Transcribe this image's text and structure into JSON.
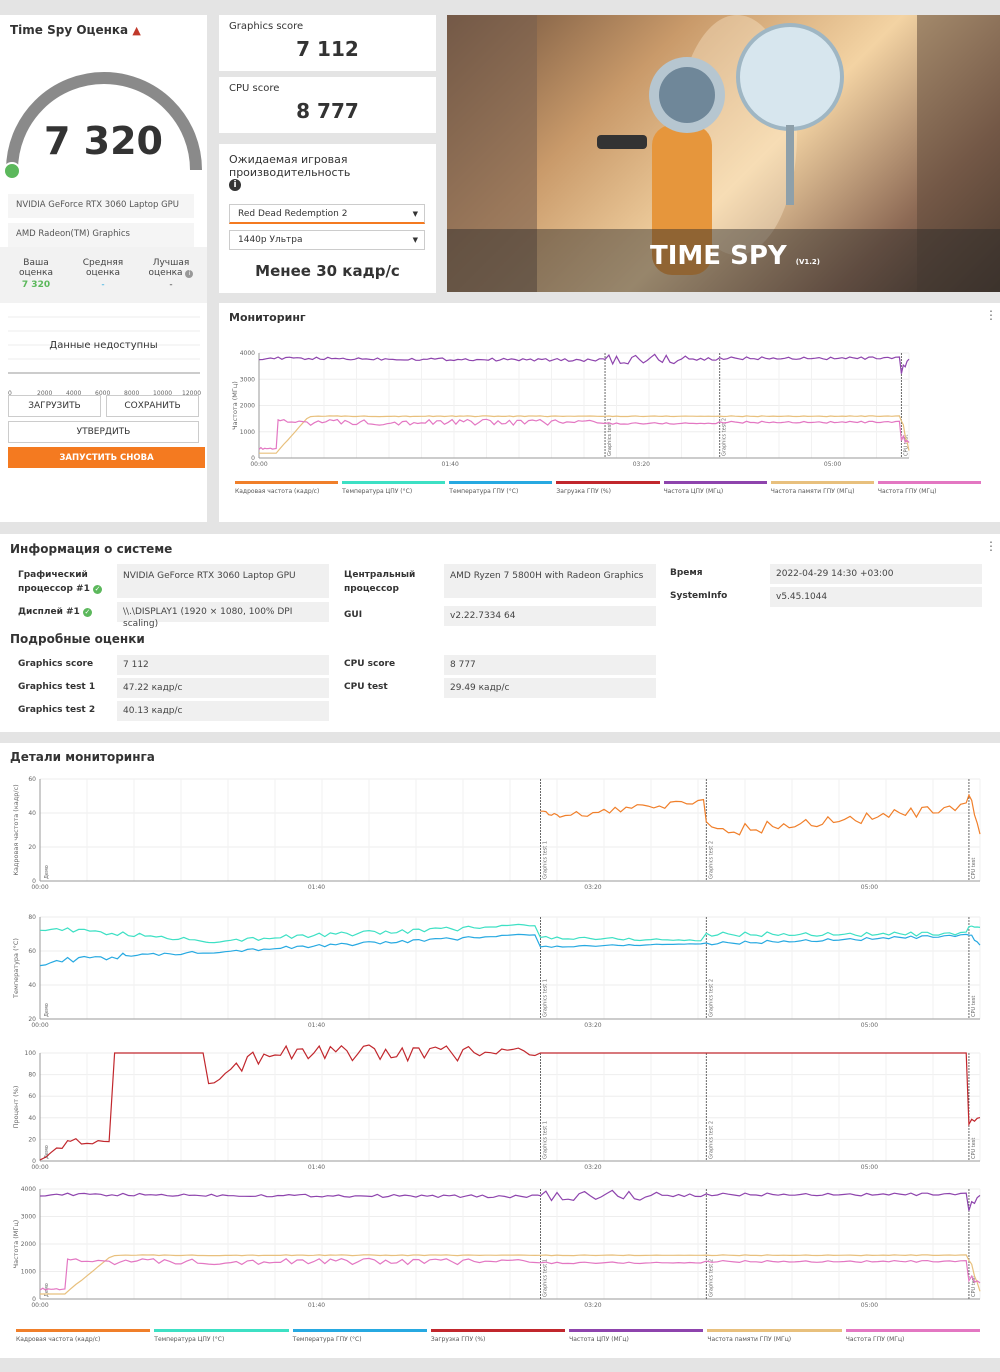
{
  "score_card": {
    "title": "Time Spy Оценка",
    "score": "7 320",
    "gpu": "NVIDIA GeForce RTX 3060 Laptop GPU",
    "igpu": "AMD Radeon(TM) Graphics",
    "your_label": "Ваша оценка",
    "your_value": "7 320",
    "avg_label": "Средняя оценка",
    "avg_value": "-",
    "best_label": "Лучшая оценка",
    "best_value": "-",
    "no_data": "Данные недоступны",
    "axis_ticks": [
      "0",
      "2000",
      "4000",
      "6000",
      "8000",
      "10000",
      "12000"
    ],
    "load_btn": "ЗАГРУЗИТЬ",
    "save_btn": "СОХРАНИТЬ",
    "confirm_btn": "УТВЕРДИТЬ",
    "run_btn": "ЗАПУСТИТЬ СНОВА",
    "gauge_fraction": 0.0,
    "accent": "#f47a20",
    "gauge_dot": "#5cb85c"
  },
  "graphics_score": {
    "label": "Graphics score",
    "value": "7 112"
  },
  "cpu_score": {
    "label": "CPU score",
    "value": "8 777"
  },
  "expected": {
    "title": "Ожидаемая игровая производительность",
    "game": "Red Dead Redemption 2",
    "preset": "1440p Ультра",
    "result": "Менее 30 кадр/с"
  },
  "hero": {
    "title": "TIME SPY",
    "version": "(V1.2)"
  },
  "monitoring": {
    "title": "Мониторинг",
    "ylabel": "Частота (МГц)",
    "yticks": [
      "4000",
      "3000",
      "2000",
      "1000",
      "0"
    ],
    "xticks": [
      "00:00",
      "01:40",
      "03:20",
      "05:00"
    ],
    "markers": [
      "Graphics test 1",
      "Graphics test 2",
      "CPU test"
    ]
  },
  "legend": [
    {
      "label": "Кадровая частота (кадр/с)",
      "color": "#f07f2a"
    },
    {
      "label": "Температура ЦПУ (°C)",
      "color": "#3de0c4"
    },
    {
      "label": "Температура ГПУ (°C)",
      "color": "#27a9e1"
    },
    {
      "label": "Загрузка ГПУ (%)",
      "color": "#c1272d"
    },
    {
      "label": "Частота ЦПУ (МГц)",
      "color": "#8e44ad"
    },
    {
      "label": "Частота памяти ГПУ (МГц)",
      "color": "#e8c07d"
    },
    {
      "label": "Частота ГПУ (МГц)",
      "color": "#e377c2"
    }
  ],
  "sysinfo": {
    "title": "Информация о системе",
    "gpu_label": "Графический процессор #1",
    "gpu_value": "NVIDIA GeForce RTX 3060 Laptop GPU",
    "display_label": "Дисплей #1",
    "display_value": "\\\\.\\DISPLAY1 (1920 × 1080, 100% DPI scaling)",
    "cpu_label": "Центральный процессор",
    "cpu_value": "AMD Ryzen 7 5800H with Radeon Graphics",
    "gui_label": "GUI",
    "gui_value": "v2.22.7334 64",
    "time_label": "Время",
    "time_value": "2022-04-29 14:30 +03:00",
    "si_label": "SystemInfo",
    "si_value": "v5.45.1044"
  },
  "detailed": {
    "title": "Подробные оценки",
    "gs_label": "Graphics score",
    "gs_value": "7 112",
    "gt1_label": "Graphics test 1",
    "gt1_value": "47.22 кадр/с",
    "gt2_label": "Graphics test 2",
    "gt2_value": "40.13 кадр/с",
    "cs_label": "CPU score",
    "cs_value": "8 777",
    "ct_label": "CPU test",
    "ct_value": "29.49 кадр/с"
  },
  "details": {
    "title": "Детали мониторинга",
    "markers": [
      "Демо",
      "Graphics test 1",
      "Graphics test 2",
      "CPU test"
    ],
    "xticks": [
      "00:00",
      "01:40",
      "03:20",
      "05:00"
    ],
    "charts": [
      {
        "ylabel": "Кадровая частота (кадр/с)",
        "yticks": [
          "60",
          "40",
          "20",
          "0"
        ]
      },
      {
        "ylabel": "Температура (°C)",
        "yticks": [
          "80",
          "60",
          "40",
          "20"
        ]
      },
      {
        "ylabel": "Процент (%)",
        "yticks": [
          "100",
          "80",
          "60",
          "40",
          "20",
          "0"
        ]
      },
      {
        "ylabel": "Частота (МГц)",
        "yticks": [
          "4000",
          "3000",
          "2000",
          "1000",
          "0"
        ]
      }
    ]
  }
}
